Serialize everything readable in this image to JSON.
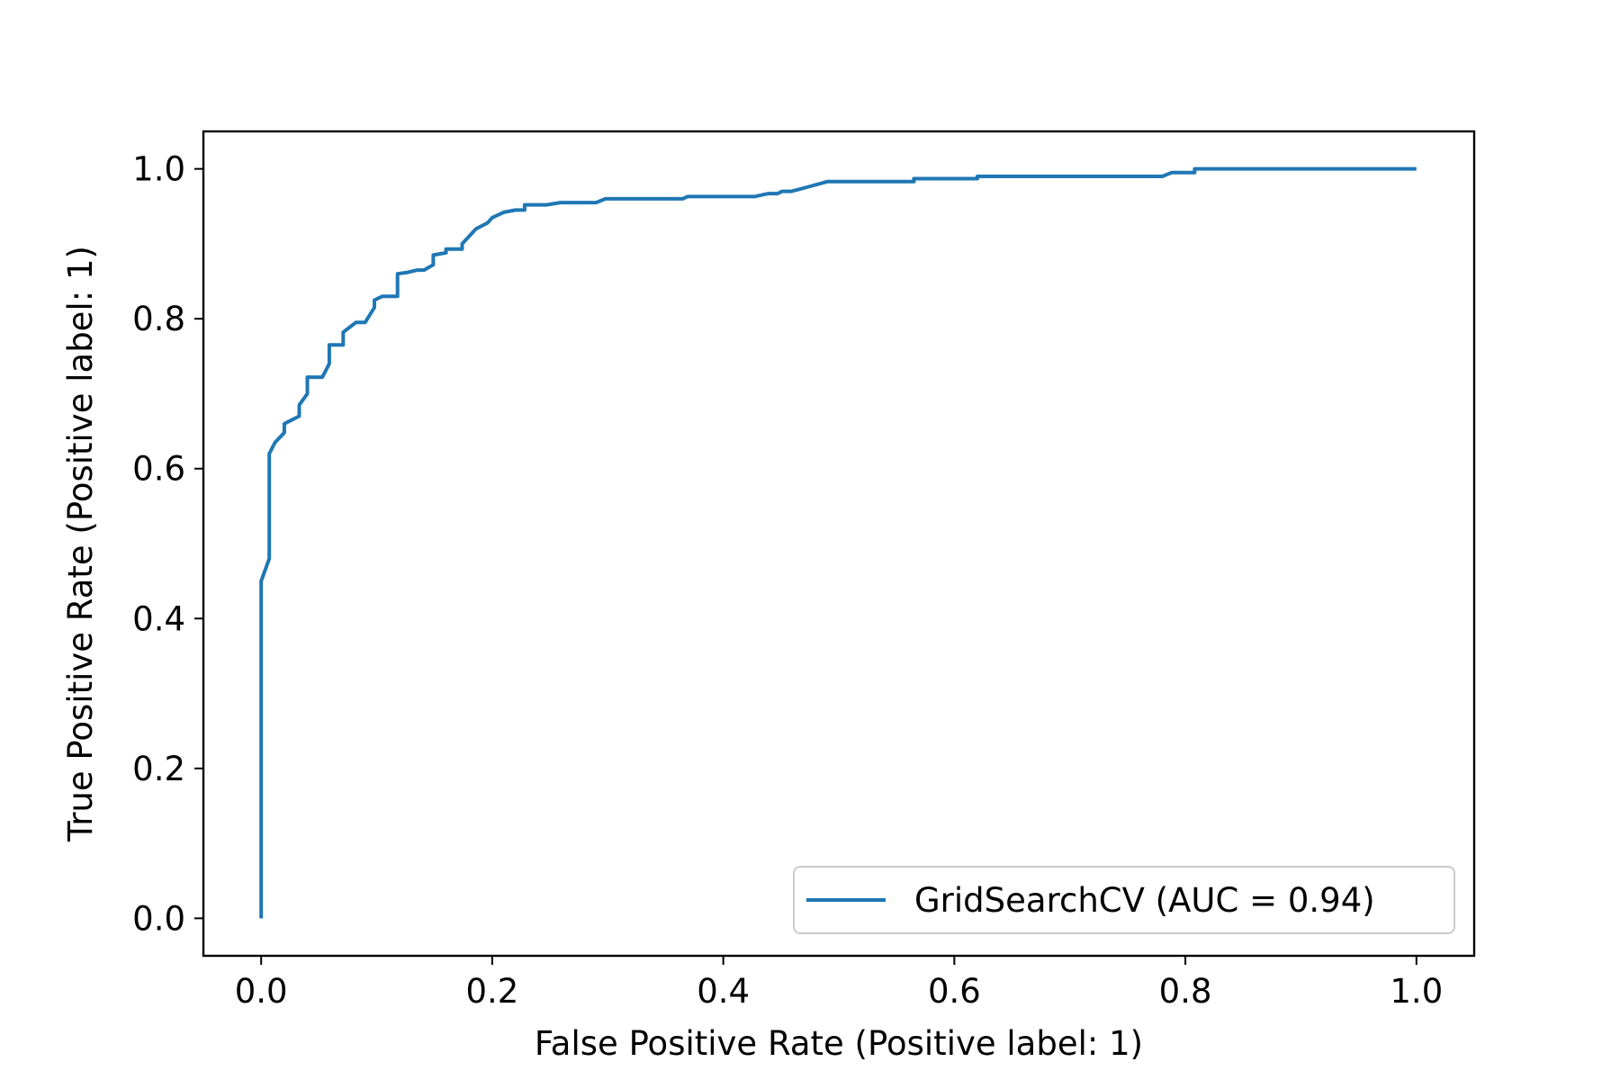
{
  "chart_data": {
    "type": "line",
    "title": "",
    "xlabel": "False Positive Rate (Positive label: 1)",
    "ylabel": "True Positive Rate (Positive label: 1)",
    "xlim": [
      -0.05,
      1.05
    ],
    "ylim": [
      -0.05,
      1.05
    ],
    "xticks": [
      0.0,
      0.2,
      0.4,
      0.6,
      0.8,
      1.0
    ],
    "yticks": [
      0.0,
      0.2,
      0.4,
      0.6,
      0.8,
      1.0
    ],
    "xtick_labels": [
      "0.0",
      "0.2",
      "0.4",
      "0.6",
      "0.8",
      "1.0"
    ],
    "ytick_labels": [
      "0.0",
      "0.2",
      "0.4",
      "0.6",
      "0.8",
      "1.0"
    ],
    "grid": false,
    "legend_position": "lower-right",
    "color": "#1f77b4",
    "series": [
      {
        "name": "GridSearchCV (AUC = 0.94)",
        "x": [
          0.0,
          0.0,
          0.007,
          0.007,
          0.012,
          0.02,
          0.02,
          0.033,
          0.033,
          0.04,
          0.04,
          0.053,
          0.059,
          0.059,
          0.071,
          0.071,
          0.082,
          0.09,
          0.094,
          0.098,
          0.098,
          0.105,
          0.118,
          0.118,
          0.127,
          0.135,
          0.141,
          0.149,
          0.149,
          0.16,
          0.16,
          0.174,
          0.174,
          0.18,
          0.186,
          0.196,
          0.2,
          0.21,
          0.22,
          0.228,
          0.228,
          0.247,
          0.259,
          0.29,
          0.298,
          0.365,
          0.369,
          0.427,
          0.439,
          0.447,
          0.451,
          0.459,
          0.471,
          0.49,
          0.565,
          0.565,
          0.62,
          0.62,
          0.78,
          0.788,
          0.808,
          0.808,
          1.0
        ],
        "y": [
          0.0,
          0.45,
          0.48,
          0.62,
          0.635,
          0.648,
          0.66,
          0.67,
          0.685,
          0.7,
          0.722,
          0.722,
          0.74,
          0.765,
          0.765,
          0.782,
          0.795,
          0.795,
          0.805,
          0.815,
          0.825,
          0.83,
          0.83,
          0.86,
          0.862,
          0.865,
          0.865,
          0.872,
          0.885,
          0.888,
          0.893,
          0.893,
          0.9,
          0.91,
          0.92,
          0.928,
          0.935,
          0.942,
          0.945,
          0.945,
          0.952,
          0.952,
          0.955,
          0.955,
          0.96,
          0.96,
          0.963,
          0.963,
          0.967,
          0.967,
          0.97,
          0.97,
          0.975,
          0.983,
          0.983,
          0.987,
          0.987,
          0.99,
          0.99,
          0.995,
          0.995,
          1.0,
          1.0
        ]
      }
    ]
  }
}
